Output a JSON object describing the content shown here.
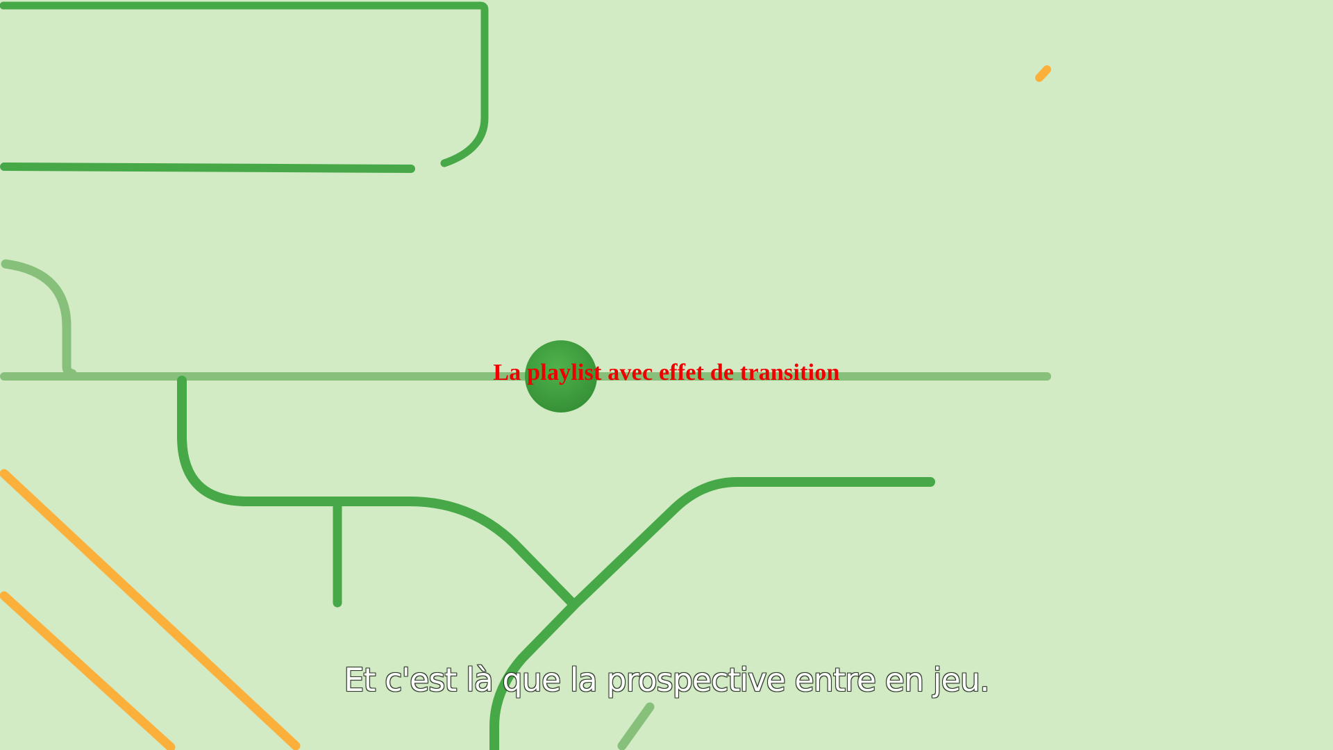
{
  "overlay": {
    "title": "La playlist avec effet de transition"
  },
  "video": {
    "subtitle": "Et c'est là que la prospective entre en jeu."
  },
  "colors": {
    "background": "#d2ebc5",
    "line_dark_green": "#46a846",
    "line_light_green": "#86c07a",
    "line_orange": "#fbb03b",
    "dot_green": "#3a9a3a",
    "overlay_text": "#ee0000"
  }
}
